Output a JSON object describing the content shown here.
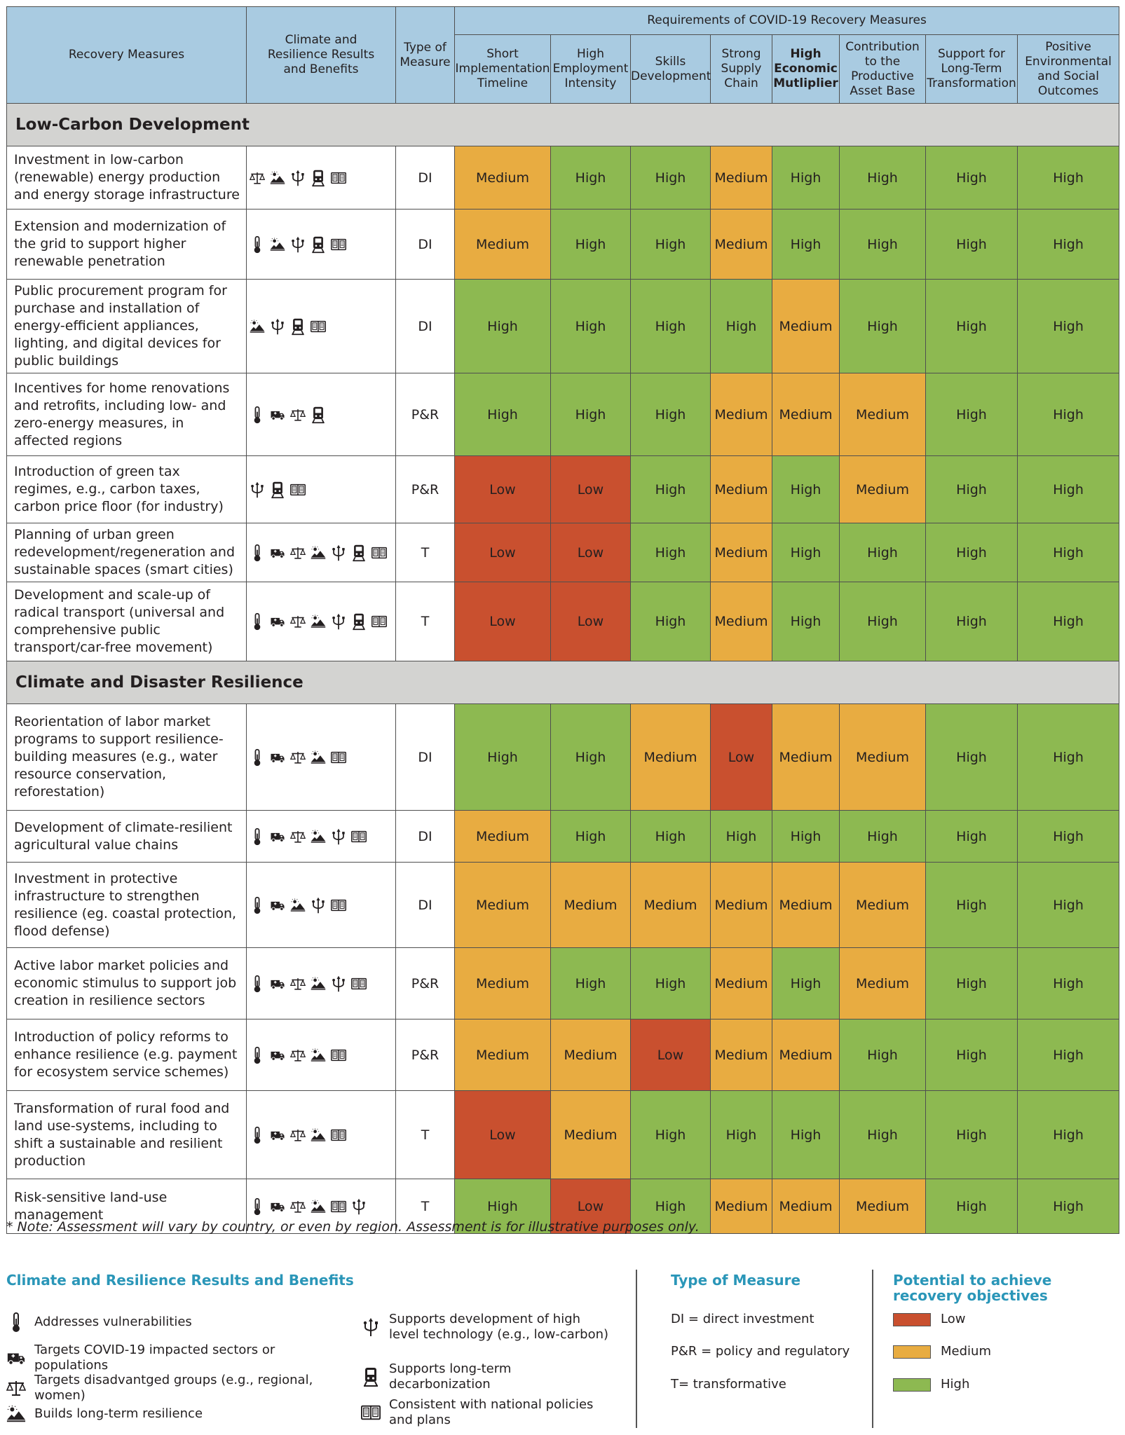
{
  "header": {
    "measures": "Recovery Measures",
    "benefits": "Climate and Resilience Results and Benefits",
    "type": "Type of Measure",
    "requirements": "Requirements of COVID-19 Recovery Measures",
    "columns": [
      "Short Implementation Timeline",
      "High Employment Intensity",
      "Skills Development",
      "Strong Supply Chain",
      "High Economic Mutliplier",
      "Contribution to the Productive Asset Base",
      "Support for Long-Term Transformation",
      "Positive Environmental and Social Outcomes"
    ]
  },
  "sections": [
    {
      "title": "Low-Carbon Development",
      "rows": [
        {
          "measure": "Investment in low-carbon (renewable) energy production and energy storage infrastructure",
          "icons": [
            "scales-icon",
            "resilience-icon",
            "technology-icon",
            "train-icon",
            "book-icon"
          ],
          "type": "DI",
          "ratings": [
            "Medium",
            "High",
            "High",
            "Medium",
            "High",
            "High",
            "High",
            "High"
          ]
        },
        {
          "measure": "Extension and modernization of the grid to support higher renewable penetration",
          "icons": [
            "thermometer-icon",
            "resilience-icon",
            "technology-icon",
            "train-icon",
            "book-icon"
          ],
          "type": "DI",
          "ratings": [
            "Medium",
            "High",
            "High",
            "Medium",
            "High",
            "High",
            "High",
            "High"
          ]
        },
        {
          "measure": "Public procurement program for purchase and installation of energy-efficient appliances, lighting, and digital devices for public buildings",
          "icons": [
            "resilience-icon",
            "technology-icon",
            "train-icon",
            "book-icon"
          ],
          "type": "DI",
          "ratings": [
            "High",
            "High",
            "High",
            "High",
            "Medium",
            "High",
            "High",
            "High"
          ]
        },
        {
          "measure": "Incentives for home renovations and retrofits, including low- and zero-energy measures, in affected regions",
          "icons": [
            "thermometer-icon",
            "ambulance-icon",
            "scales-icon",
            "train-icon"
          ],
          "type": "P&R",
          "ratings": [
            "High",
            "High",
            "High",
            "Medium",
            "Medium",
            "Medium",
            "High",
            "High"
          ]
        },
        {
          "measure": "Introduction of green tax regimes, e.g., carbon taxes, carbon price floor (for industry)",
          "icons": [
            "technology-icon",
            "train-icon",
            "book-icon"
          ],
          "type": "P&R",
          "ratings": [
            "Low",
            "Low",
            "High",
            "Medium",
            "High",
            "Medium",
            "High",
            "High"
          ]
        },
        {
          "measure": "Planning of urban green redevelopment/regeneration and sustainable spaces (smart cities)",
          "icons": [
            "thermometer-icon",
            "ambulance-icon",
            "scales-icon",
            "resilience-icon",
            "technology-icon",
            "train-icon",
            "book-icon"
          ],
          "type": "T",
          "ratings": [
            "Low",
            "Low",
            "High",
            "Medium",
            "High",
            "High",
            "High",
            "High"
          ]
        },
        {
          "measure": "Development and scale-up of radical transport (universal and comprehensive public transport/car-free movement)",
          "icons": [
            "thermometer-icon",
            "ambulance-icon",
            "scales-icon",
            "resilience-icon",
            "technology-icon",
            "train-icon",
            "book-icon"
          ],
          "type": "T",
          "ratings": [
            "Low",
            "Low",
            "High",
            "Medium",
            "High",
            "High",
            "High",
            "High"
          ]
        }
      ]
    },
    {
      "title": "Climate and Disaster Resilience",
      "rows": [
        {
          "measure": "Reorientation of labor market programs to support resilience-building measures (e.g., water resource conservation, reforestation)",
          "icons": [
            "thermometer-icon",
            "ambulance-icon",
            "scales-icon",
            "resilience-icon",
            "book-icon"
          ],
          "type": "DI",
          "ratings": [
            "High",
            "High",
            "Medium",
            "Low",
            "Medium",
            "Medium",
            "High",
            "High"
          ]
        },
        {
          "measure": "Development of climate-resilient agricultural value chains",
          "icons": [
            "thermometer-icon",
            "ambulance-icon",
            "scales-icon",
            "resilience-icon",
            "technology-icon",
            "book-icon"
          ],
          "type": "DI",
          "ratings": [
            "Medium",
            "High",
            "High",
            "High",
            "High",
            "High",
            "High",
            "High"
          ]
        },
        {
          "measure": "Investment in protective infrastructure to strengthen resilience (eg. coastal protection, flood defense)",
          "icons": [
            "thermometer-icon",
            "ambulance-icon",
            "resilience-icon",
            "technology-icon",
            "book-icon"
          ],
          "type": "DI",
          "ratings": [
            "Medium",
            "Medium",
            "Medium",
            "Medium",
            "Medium",
            "Medium",
            "High",
            "High"
          ]
        },
        {
          "measure": "Active labor market policies and economic stimulus to support job creation in resilience sectors",
          "icons": [
            "thermometer-icon",
            "ambulance-icon",
            "scales-icon",
            "resilience-icon",
            "technology-icon",
            "book-icon"
          ],
          "type": "P&R",
          "ratings": [
            "Medium",
            "High",
            "High",
            "Medium",
            "High",
            "Medium",
            "High",
            "High"
          ]
        },
        {
          "measure": "Introduction of policy reforms to enhance resilience (e.g. payment for ecosystem service schemes)",
          "icons": [
            "thermometer-icon",
            "ambulance-icon",
            "scales-icon",
            "resilience-icon",
            "book-icon"
          ],
          "type": "P&R",
          "ratings": [
            "Medium",
            "Medium",
            "Low",
            "Medium",
            "Medium",
            "High",
            "High",
            "High"
          ]
        },
        {
          "measure": "Transformation of rural food and land use-systems, including to shift a sustainable and resilient production",
          "icons": [
            "thermometer-icon",
            "ambulance-icon",
            "scales-icon",
            "resilience-icon",
            "book-icon"
          ],
          "type": "T",
          "ratings": [
            "Low",
            "Medium",
            "High",
            "High",
            "High",
            "High",
            "High",
            "High"
          ]
        },
        {
          "measure": "Risk-sensitive land-use management",
          "icons": [
            "thermometer-icon",
            "ambulance-icon",
            "scales-icon",
            "resilience-icon",
            "book-icon",
            "technology-icon"
          ],
          "type": "T",
          "ratings": [
            "High",
            "Low",
            "High",
            "Medium",
            "Medium",
            "Medium",
            "High",
            "High"
          ]
        }
      ]
    }
  ],
  "note": "* Note: Assessment will vary by country, or even by region. Assessment is for illustrative purposes only.",
  "legend": {
    "benefits_title": "Climate and Resilience Results and Benefits",
    "benefits": [
      {
        "icon": "thermometer-icon",
        "label": "Addresses vulnerabilities"
      },
      {
        "icon": "ambulance-icon",
        "label": "Targets COVID-19 impacted sectors or populations"
      },
      {
        "icon": "scales-icon",
        "label": "Targets disadvantged groups (e.g., regional, women)"
      },
      {
        "icon": "resilience-icon",
        "label": "Builds long-term resilience"
      },
      {
        "icon": "technology-icon",
        "label": "Supports development of high level technology (e.g., low-carbon)"
      },
      {
        "icon": "train-icon",
        "label": "Supports long-term decarbonization"
      },
      {
        "icon": "book-icon",
        "label": "Consistent with national policies and plans"
      }
    ],
    "type_title": "Type of Measure",
    "types": [
      "DI = direct investment",
      "P&R = policy and regulatory",
      "T= transformative"
    ],
    "potential_title": "Potential to achieve recovery objectives",
    "potential": [
      {
        "label": "Low",
        "color": "#c9502f"
      },
      {
        "label": "Medium",
        "color": "#e8ac41"
      },
      {
        "label": "High",
        "color": "#8db951"
      }
    ]
  }
}
